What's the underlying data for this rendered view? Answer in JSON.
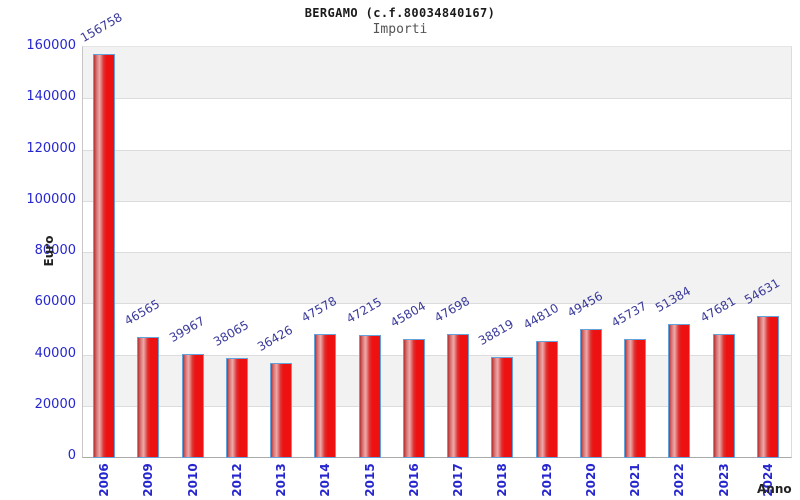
{
  "chart_data": {
    "type": "bar",
    "title": "BERGAMO (c.f.80034840167)",
    "subtitle": "Importi",
    "xlabel": "Anno",
    "ylabel": "Euro",
    "categories": [
      "2006",
      "2009",
      "2010",
      "2012",
      "2013",
      "2014",
      "2015",
      "2016",
      "2017",
      "2018",
      "2019",
      "2020",
      "2021",
      "2022",
      "2023",
      "2024"
    ],
    "values": [
      156758,
      46565,
      39967,
      38065,
      36426,
      47578,
      47215,
      45804,
      47698,
      38819,
      44810,
      49456,
      45737,
      51384,
      47681,
      54631
    ],
    "ylim": [
      0,
      160000
    ],
    "ytick_step": 20000,
    "yticks": [
      0,
      20000,
      40000,
      60000,
      80000,
      100000,
      120000,
      140000,
      160000
    ],
    "legend": "none",
    "grid": "horizontal alternating bands, gray stripe at top band",
    "colors": {
      "title": "#1a1a1a",
      "subtitle": "#555555",
      "tick_label": "#2626cf",
      "value_label": "#39399b",
      "axis_title": "#222222",
      "bar_fill": "#ee1111",
      "bar_border": "#64a2dc",
      "band_gray": "#f2f2f2",
      "gridline": "#dcdcdc",
      "axis_line": "#aaaaaa"
    }
  }
}
